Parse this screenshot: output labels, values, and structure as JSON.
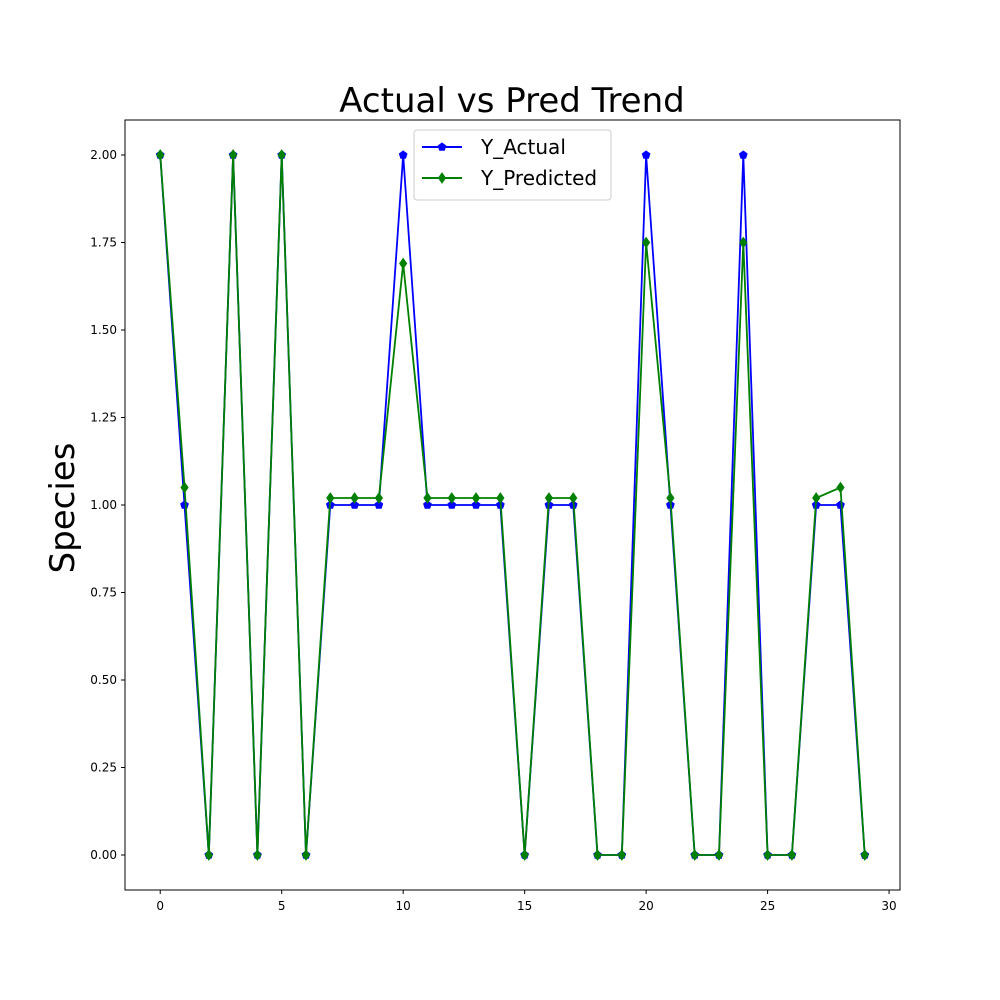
{
  "chart_data": {
    "type": "line",
    "title": "Actual vs Pred Trend",
    "xlabel": "",
    "ylabel": "Species",
    "xlim": [
      -1.45,
      30.45
    ],
    "ylim": [
      -0.1,
      2.1
    ],
    "xticks": [
      0,
      5,
      10,
      15,
      20,
      25,
      30
    ],
    "yticks": [
      0.0,
      0.25,
      0.5,
      0.75,
      1.0,
      1.25,
      1.5,
      1.75,
      2.0
    ],
    "ytick_labels": [
      "0.00",
      "0.25",
      "0.50",
      "0.75",
      "1.00",
      "1.25",
      "1.50",
      "1.75",
      "2.00"
    ],
    "grid": false,
    "legend_position": "top-center",
    "x": [
      0,
      1,
      2,
      3,
      4,
      5,
      6,
      7,
      8,
      9,
      10,
      11,
      12,
      13,
      14,
      15,
      16,
      17,
      18,
      19,
      20,
      21,
      22,
      23,
      24,
      25,
      26,
      27,
      28,
      29
    ],
    "series": [
      {
        "name": "Y_Actual",
        "color": "#0000ff",
        "marker": "pentagon",
        "values": [
          2,
          1,
          0,
          2,
          0,
          2,
          0,
          1,
          1,
          1,
          2,
          1,
          1,
          1,
          1,
          0,
          1,
          1,
          0,
          0,
          2,
          1,
          0,
          0,
          2,
          0,
          0,
          1,
          1,
          0
        ]
      },
      {
        "name": "Y_Predicted",
        "color": "#008000",
        "marker": "diamond",
        "values": [
          2,
          1.05,
          0,
          2,
          0,
          2,
          0,
          1.02,
          1.02,
          1.02,
          1.69,
          1.02,
          1.02,
          1.02,
          1.02,
          0,
          1.02,
          1.02,
          0,
          0,
          1.75,
          1.02,
          0,
          0,
          1.75,
          0,
          0,
          1.02,
          1.05,
          0
        ]
      }
    ]
  }
}
